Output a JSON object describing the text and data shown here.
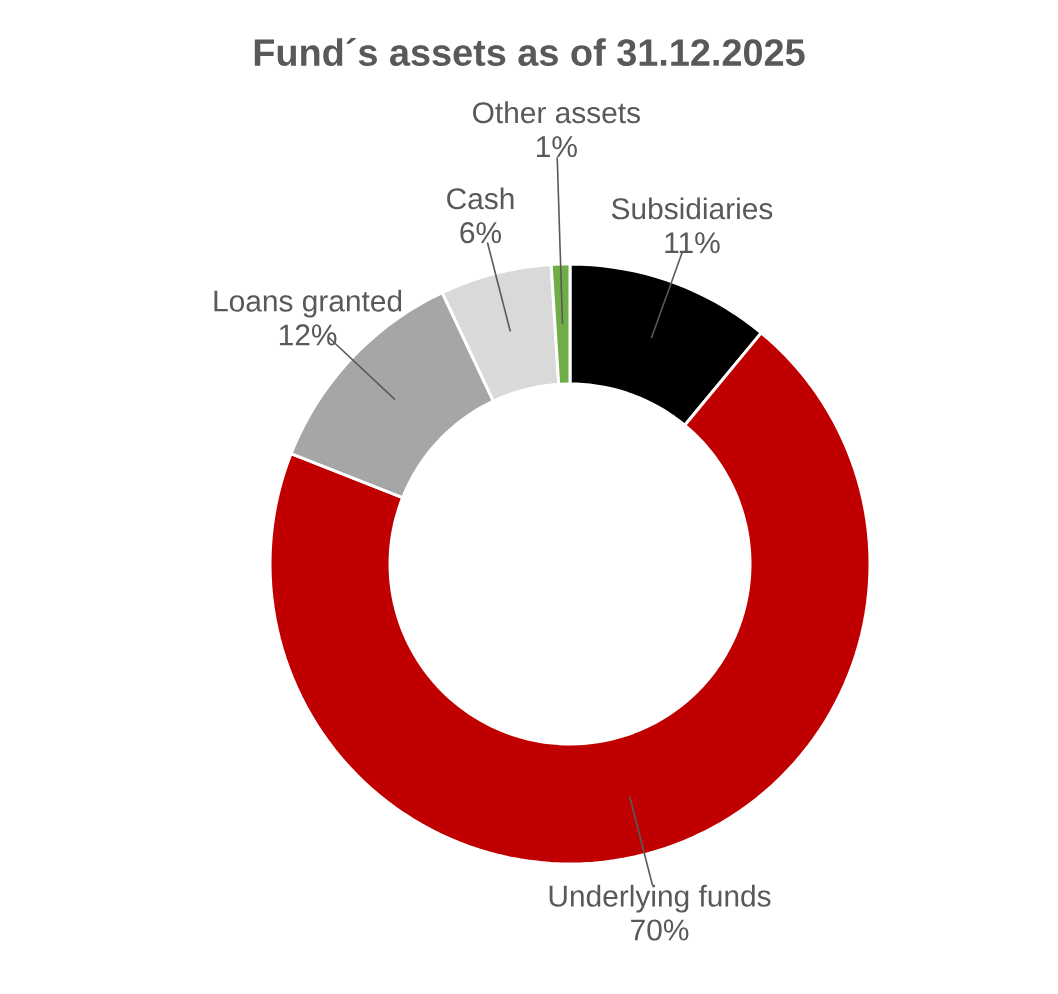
{
  "chart_data": {
    "type": "donut",
    "title": "Fund´s assets as of 31.12.2025",
    "categories": [
      "Subsidiaries",
      "Underlying funds",
      "Loans granted",
      "Cash",
      "Other assets"
    ],
    "values": [
      11,
      70,
      12,
      6,
      1
    ],
    "value_labels": [
      "11%",
      "70%",
      "12%",
      "6%",
      "1%"
    ],
    "colors": [
      "#000000",
      "#c00000",
      "#a6a6a6",
      "#d9d9d9",
      "#70ad47"
    ]
  }
}
